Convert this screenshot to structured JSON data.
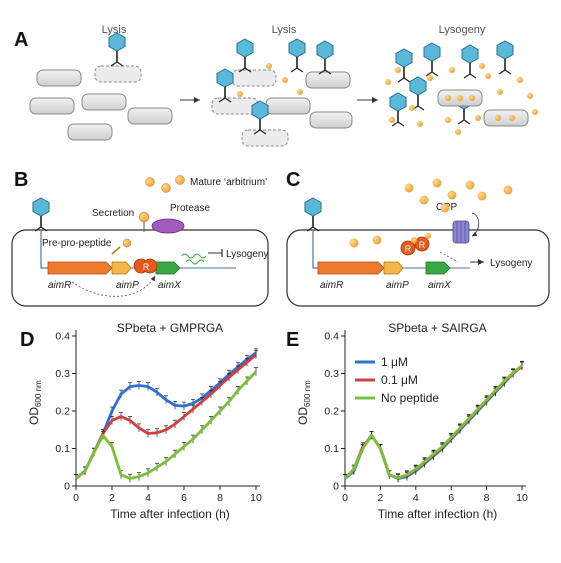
{
  "panels": {
    "A": {
      "letter": "A",
      "stages": [
        "Lysis",
        "Lysis",
        "Lysogeny"
      ]
    },
    "B": {
      "letter": "B",
      "labels": {
        "mature": "Mature ‘arbitrium’",
        "secretion": "Secretion",
        "protease": "Protease",
        "prepro": "Pre-pro-peptide",
        "lysogeny": "Lysogeny",
        "aimR": "aimR",
        "aimP": "aimP",
        "aimX": "aimX",
        "R": "R"
      }
    },
    "C": {
      "letter": "C",
      "labels": {
        "opp": "OPP",
        "lysogeny": "Lysogeny",
        "aimR": "aimR",
        "aimP": "aimP",
        "aimX": "aimX",
        "R": "R"
      }
    },
    "D": {
      "letter": "D"
    },
    "E": {
      "letter": "E"
    }
  },
  "chart_data": [
    {
      "type": "line",
      "panel": "D",
      "title": "SPbeta + GMPRGA",
      "xlabel": "Time after infection (h)",
      "ylabel_main": "OD",
      "ylabel_sub": "600 nm",
      "xlim": [
        0,
        10
      ],
      "ylim": [
        0,
        0.4
      ],
      "xticks": [
        0,
        2,
        4,
        6,
        8,
        10
      ],
      "yticks": [
        0,
        0.1,
        0.2,
        0.3,
        0.4
      ],
      "series": [
        {
          "color": "#2f6fd0",
          "x": [
            0,
            0.5,
            1,
            1.5,
            2,
            2.5,
            3,
            3.5,
            4,
            4.5,
            5,
            5.5,
            6,
            6.5,
            7,
            7.5,
            8,
            8.5,
            9,
            9.5,
            10
          ],
          "y": [
            0.02,
            0.04,
            0.09,
            0.14,
            0.2,
            0.245,
            0.265,
            0.268,
            0.265,
            0.25,
            0.23,
            0.215,
            0.213,
            0.22,
            0.235,
            0.255,
            0.275,
            0.298,
            0.318,
            0.338,
            0.355
          ]
        },
        {
          "color": "#d04040",
          "x": [
            0,
            0.5,
            1,
            1.5,
            2,
            2.5,
            3,
            3.5,
            4,
            4.5,
            5,
            5.5,
            6,
            6.5,
            7,
            7.5,
            8,
            8.5,
            9,
            9.5,
            10
          ],
          "y": [
            0.02,
            0.04,
            0.09,
            0.14,
            0.175,
            0.185,
            0.175,
            0.155,
            0.14,
            0.142,
            0.15,
            0.165,
            0.185,
            0.205,
            0.225,
            0.245,
            0.268,
            0.29,
            0.31,
            0.33,
            0.35
          ]
        },
        {
          "color": "#7cbf3c",
          "x": [
            0,
            0.5,
            1,
            1.5,
            2,
            2.5,
            3,
            3.5,
            4,
            4.5,
            5,
            5.5,
            6,
            6.5,
            7,
            7.5,
            8,
            8.5,
            9,
            9.5,
            10
          ],
          "y": [
            0.02,
            0.04,
            0.09,
            0.135,
            0.105,
            0.03,
            0.02,
            0.025,
            0.035,
            0.05,
            0.065,
            0.085,
            0.105,
            0.125,
            0.15,
            0.175,
            0.2,
            0.225,
            0.255,
            0.28,
            0.305
          ]
        }
      ]
    },
    {
      "type": "line",
      "panel": "E",
      "title": "SPbeta + SAIRGA",
      "xlabel": "Time after infection (h)",
      "ylabel_main": "OD",
      "ylabel_sub": "600 nm",
      "xlim": [
        0,
        10
      ],
      "ylim": [
        0,
        0.4
      ],
      "xticks": [
        0,
        2,
        4,
        6,
        8,
        10
      ],
      "yticks": [
        0,
        0.1,
        0.2,
        0.3,
        0.4
      ],
      "legend": "top-left",
      "series": [
        {
          "name": "1 μM",
          "color": "#2f6fd0",
          "x": [
            0,
            0.5,
            1,
            1.5,
            2,
            2.5,
            3,
            3.5,
            4,
            4.5,
            5,
            5.5,
            6,
            6.5,
            7,
            7.5,
            8,
            8.5,
            9,
            9.5,
            10
          ],
          "y": [
            0.02,
            0.04,
            0.1,
            0.135,
            0.1,
            0.03,
            0.02,
            0.025,
            0.04,
            0.06,
            0.08,
            0.1,
            0.125,
            0.15,
            0.175,
            0.2,
            0.225,
            0.25,
            0.275,
            0.3,
            0.32
          ]
        },
        {
          "name": "0.1 μM",
          "color": "#d04040",
          "x": [
            0,
            0.5,
            1,
            1.5,
            2,
            2.5,
            3,
            3.5,
            4,
            4.5,
            5,
            5.5,
            6,
            6.5,
            7,
            7.5,
            8,
            8.5,
            9,
            9.5,
            10
          ],
          "y": [
            0.02,
            0.045,
            0.105,
            0.135,
            0.1,
            0.03,
            0.022,
            0.028,
            0.043,
            0.063,
            0.083,
            0.103,
            0.128,
            0.153,
            0.178,
            0.203,
            0.228,
            0.253,
            0.278,
            0.3,
            0.32
          ]
        },
        {
          "name": "No peptide",
          "color": "#7cbf3c",
          "x": [
            0,
            0.5,
            1,
            1.5,
            2,
            2.5,
            3,
            3.5,
            4,
            4.5,
            5,
            5.5,
            6,
            6.5,
            7,
            7.5,
            8,
            8.5,
            9,
            9.5,
            10
          ],
          "y": [
            0.02,
            0.045,
            0.1,
            0.135,
            0.1,
            0.03,
            0.022,
            0.03,
            0.045,
            0.065,
            0.085,
            0.105,
            0.13,
            0.155,
            0.18,
            0.205,
            0.23,
            0.255,
            0.28,
            0.302,
            0.322
          ]
        }
      ]
    }
  ]
}
